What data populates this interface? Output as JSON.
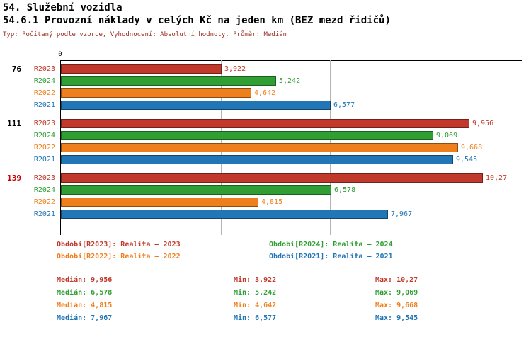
{
  "header": {
    "title": "54. Služební vozidla",
    "subtitle": "54.6.1 Provozní náklady v celých Kč na jeden km (BEZ mezd řidičů)",
    "meta": "Typ: Počítaný podle vzorce, Vyhodnocení: Absolutní hodnoty, Průměr: Medián"
  },
  "chart_data": {
    "type": "bar",
    "orientation": "horizontal",
    "unit": "Kč/km",
    "zero_label": "0",
    "axis_min": 0,
    "axis_max": 11.2,
    "grid": "vertical reference lines at 3.922, 6.577, 9.956",
    "gridlines": [
      3.922,
      6.577,
      9.956
    ],
    "series_colors": {
      "R2023": "#c0392b",
      "R2024": "#2f9e33",
      "R2022": "#ee7f1d",
      "R2021": "#2176b5"
    },
    "groups": [
      {
        "label": "76",
        "label_color": "#000000",
        "bars": [
          {
            "series": "R2023",
            "value": 3.922,
            "display": "3,922"
          },
          {
            "series": "R2024",
            "value": 5.242,
            "display": "5,242"
          },
          {
            "series": "R2022",
            "value": 4.642,
            "display": "4,642"
          },
          {
            "series": "R2021",
            "value": 6.577,
            "display": "6,577"
          }
        ]
      },
      {
        "label": "111",
        "label_color": "#000000",
        "bars": [
          {
            "series": "R2023",
            "value": 9.956,
            "display": "9,956"
          },
          {
            "series": "R2024",
            "value": 9.069,
            "display": "9,069"
          },
          {
            "series": "R2022",
            "value": 9.668,
            "display": "9,668"
          },
          {
            "series": "R2021",
            "value": 9.545,
            "display": "9,545"
          }
        ]
      },
      {
        "label": "139",
        "label_color": "#cc0000",
        "bars": [
          {
            "series": "R2023",
            "value": 10.27,
            "display": "10,27"
          },
          {
            "series": "R2024",
            "value": 6.578,
            "display": "6,578"
          },
          {
            "series": "R2022",
            "value": 4.815,
            "display": "4,815"
          },
          {
            "series": "R2021",
            "value": 7.967,
            "display": "7,967"
          }
        ]
      }
    ]
  },
  "legend": [
    {
      "label": "Období[R2023]: Realita – 2023",
      "color": "#c0392b"
    },
    {
      "label": "Období[R2024]: Realita – 2024",
      "color": "#2f9e33"
    },
    {
      "label": "Období[R2022]: Realita – 2022",
      "color": "#ee7f1d"
    },
    {
      "label": "Období[R2021]: Realita – 2021",
      "color": "#2176b5"
    }
  ],
  "stats": [
    {
      "median": "Medián: 9,956",
      "min": "Min: 3,922",
      "max": "Max: 10,27",
      "color": "#c0392b"
    },
    {
      "median": "Medián: 6,578",
      "min": "Min: 5,242",
      "max": "Max: 9,069",
      "color": "#2f9e33"
    },
    {
      "median": "Medián: 4,815",
      "min": "Min: 4,642",
      "max": "Max: 9,668",
      "color": "#ee7f1d"
    },
    {
      "median": "Medián: 7,967",
      "min": "Min: 6,577",
      "max": "Max: 9,545",
      "color": "#2176b5"
    }
  ]
}
